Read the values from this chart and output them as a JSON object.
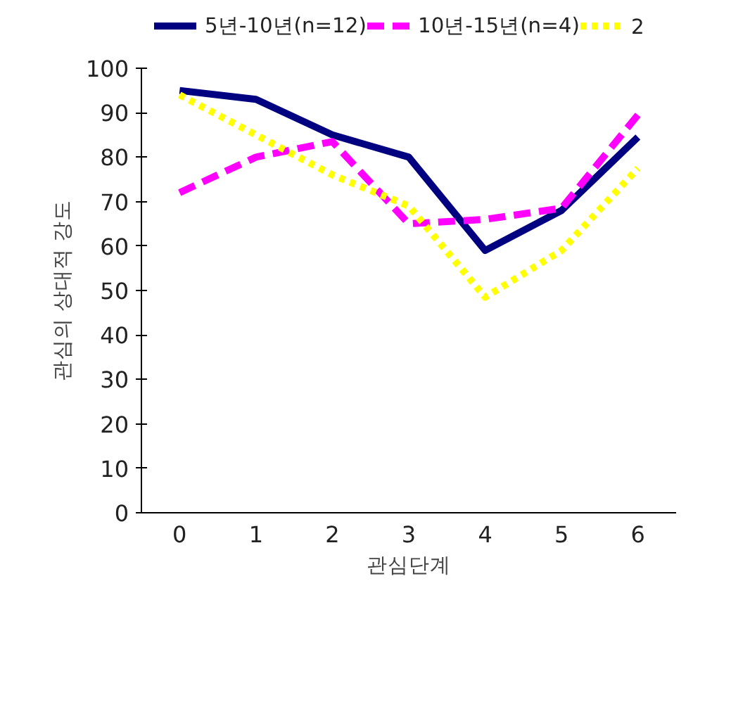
{
  "chart_data": {
    "type": "line",
    "xlabel": "관심단계",
    "ylabel": "관심의 상대적 강도",
    "categories": [
      "0",
      "1",
      "2",
      "3",
      "4",
      "5",
      "6"
    ],
    "series": [
      {
        "name": "5년-10년(n=12)",
        "color": "#000080",
        "line_style": "solid",
        "values": [
          95,
          93,
          85,
          80,
          59,
          68,
          84.5
        ]
      },
      {
        "name": "10년-15년(n=4)",
        "color": "#ff00ff",
        "line_style": "dashed",
        "values": [
          72,
          80,
          83.5,
          65,
          66,
          68.5,
          89.5
        ]
      },
      {
        "name": "2",
        "color": "#ffff00",
        "line_style": "dotted",
        "values": [
          94,
          85,
          76,
          69,
          48.5,
          59,
          77.5
        ]
      }
    ],
    "ylim": [
      0,
      100
    ],
    "yticks": [
      0,
      10,
      20,
      30,
      40,
      50,
      60,
      70,
      80,
      90,
      100
    ],
    "grid": false,
    "legend": "top",
    "marker": "none"
  }
}
